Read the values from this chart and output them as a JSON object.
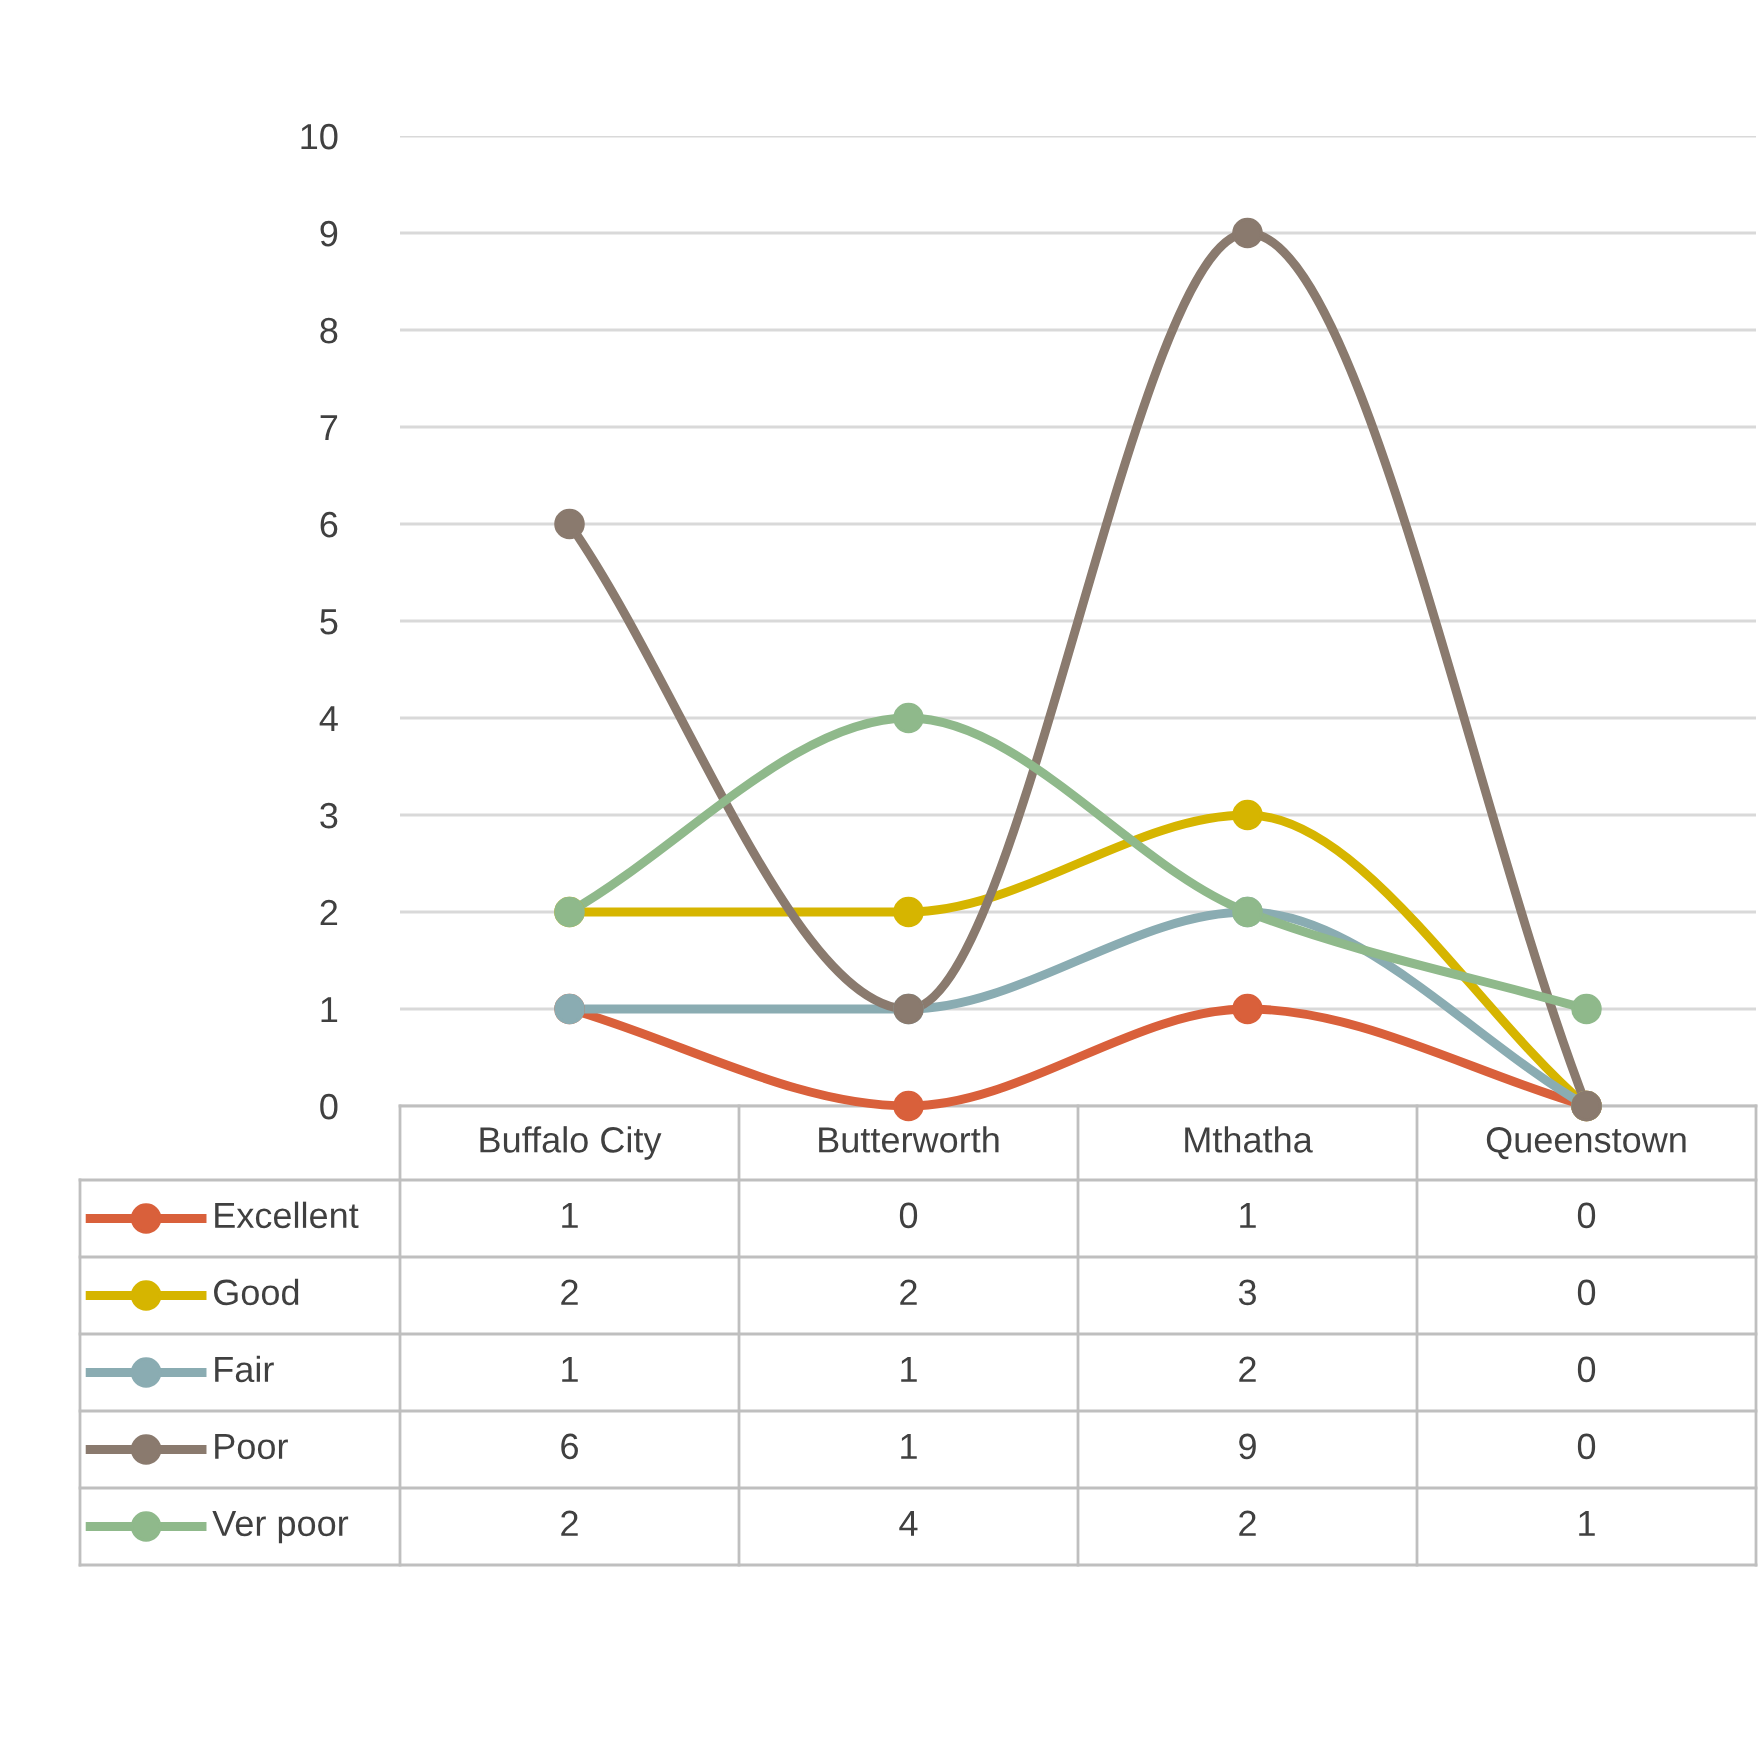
{
  "chart_data": {
    "type": "line",
    "categories": [
      "Buffalo City",
      "Butterworth",
      "Mthatha",
      "Queenstown"
    ],
    "series": [
      {
        "name": "Excellent",
        "color": "#d9603b",
        "values": [
          1,
          0,
          1,
          0
        ]
      },
      {
        "name": "Good",
        "color": "#d6b500",
        "values": [
          2,
          2,
          3,
          0
        ]
      },
      {
        "name": "Fair",
        "color": "#8aacb2",
        "values": [
          1,
          1,
          2,
          0
        ]
      },
      {
        "name": "Poor",
        "color": "#8a7a6e",
        "values": [
          6,
          1,
          9,
          0
        ]
      },
      {
        "name": "Ver poor",
        "color": "#8fb98b",
        "values": [
          2,
          4,
          2,
          1
        ]
      }
    ],
    "ylim": [
      0,
      10
    ],
    "yticks": [
      0,
      1,
      2,
      3,
      4,
      5,
      6,
      7,
      8,
      9,
      10
    ],
    "grid": "y",
    "marker": "circle",
    "line_style": "solid",
    "data_labels": true,
    "legend": "bottom"
  }
}
